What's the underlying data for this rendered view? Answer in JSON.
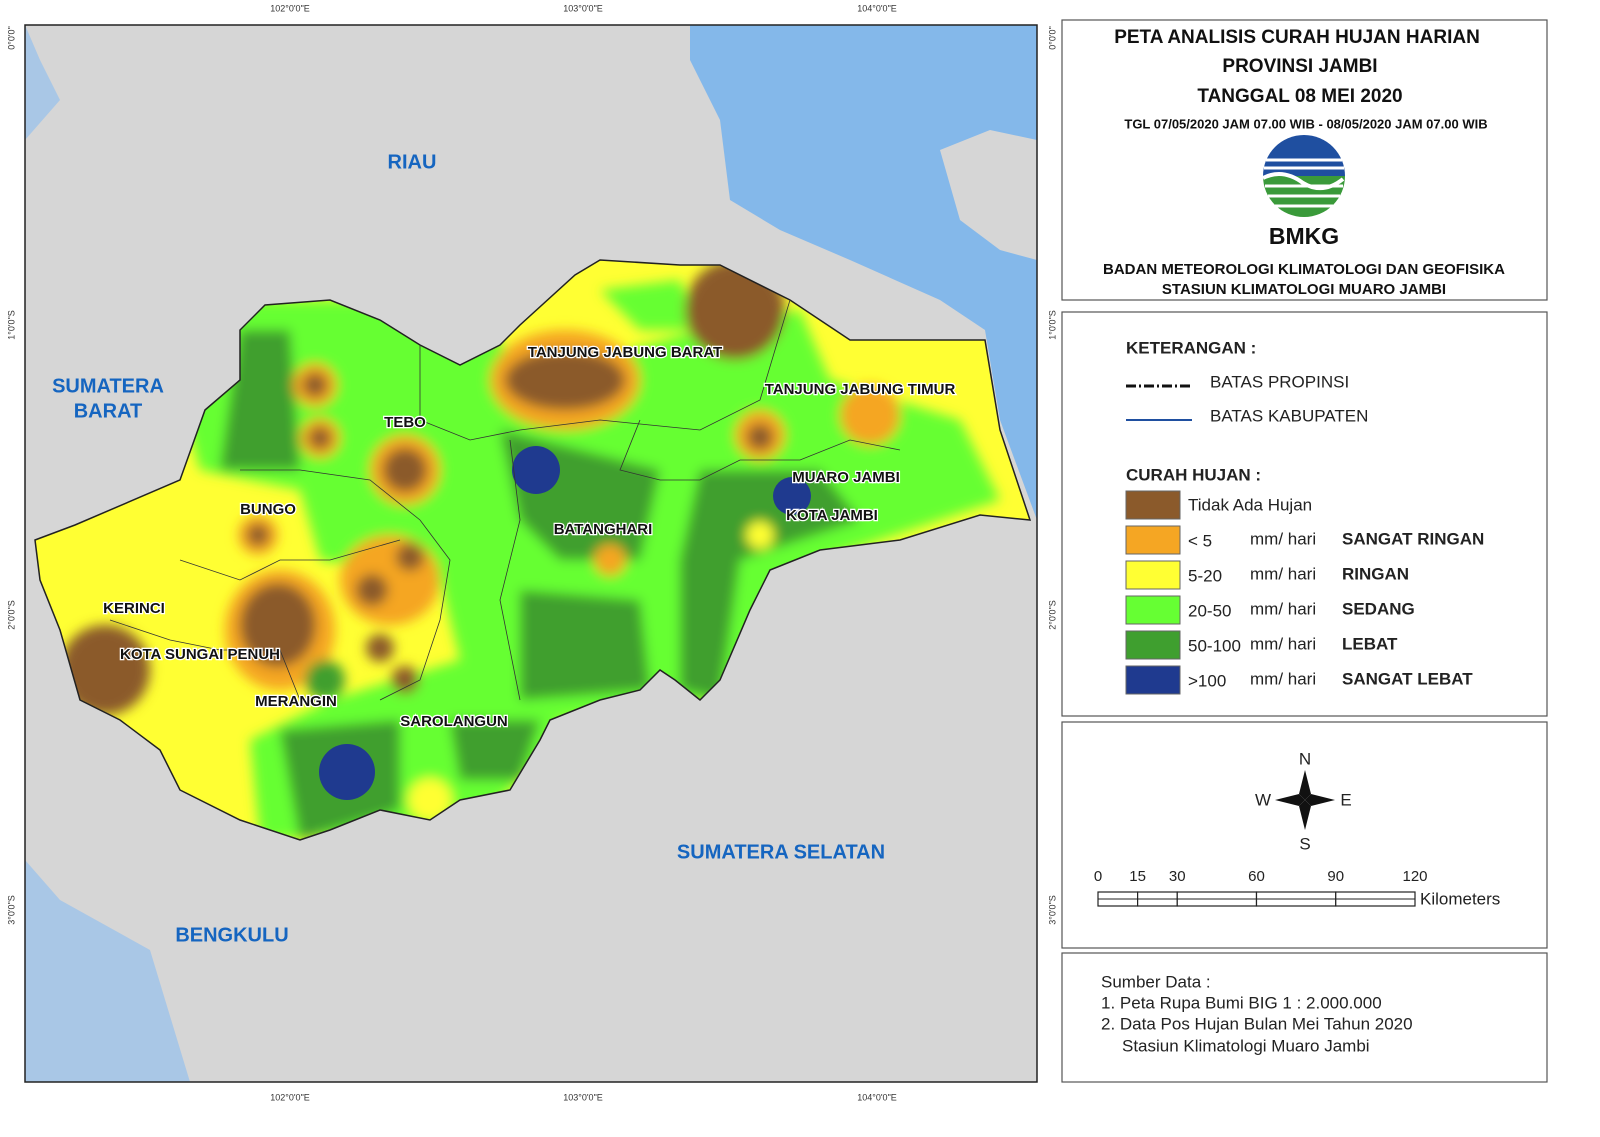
{
  "map": {
    "graticule": {
      "top": [
        "102°0'0\"E",
        "103°0'0\"E",
        "104°0'0\"E"
      ],
      "bottom": [
        "102°0'0\"E",
        "103°0'0\"E",
        "104°0'0\"E"
      ],
      "left": [
        "0°0'0\"",
        "1°0'0\"S",
        "2°0'0\"S",
        "3°0'0\"S"
      ],
      "right": [
        "0°0'0\"",
        "1°0'0\"S",
        "2°0'0\"S",
        "3°0'0\"S"
      ]
    },
    "regions": [
      "RIAU",
      "SUMATERA",
      "BARAT",
      "BENGKULU",
      "SUMATERA SELATAN"
    ],
    "districts": [
      "TANJUNG JABUNG BARAT",
      "TANJUNG JABUNG TIMUR",
      "TEBO",
      "BUNGO",
      "BATANGHARI",
      "MUARO JAMBI",
      "KOTA JAMBI",
      "KERINCI",
      "KOTA SUNGAI PENUH",
      "MERANGIN",
      "SAROLANGUN"
    ]
  },
  "header": {
    "title_lines": [
      "PETA ANALISIS CURAH HUJAN HARIAN",
      "PROVINSI JAMBI",
      "TANGGAL 08 MEI 2020"
    ],
    "period": "TGL 07/05/2020 JAM 07.00 WIB - 08/05/2020 JAM 07.00 WIB",
    "logo_text": "BMKG",
    "agency_lines": [
      "BADAN METEOROLOGI KLIMATOLOGI DAN GEOFISIKA",
      "STASIUN KLIMATOLOGI MUARO JAMBI"
    ]
  },
  "legend": {
    "heading": "KETERANGAN :",
    "boundaries": [
      "BATAS PROPINSI",
      "BATAS KABUPATEN"
    ],
    "rain_heading": "CURAH HUJAN :",
    "classes": [
      {
        "label": "Tidak Ada Hujan",
        "color": "#8b5a2b"
      },
      {
        "range": "< 5",
        "unit": "mm/ hari",
        "category": "SANGAT RINGAN",
        "color": "#f5a623"
      },
      {
        "range": "5-20",
        "unit": "mm/ hari",
        "category": "RINGAN",
        "color": "#ffff33"
      },
      {
        "range": "20-50",
        "unit": "mm/ hari",
        "category": "SEDANG",
        "color": "#66ff33"
      },
      {
        "range": "50-100",
        "unit": "mm/ hari",
        "category": "LEBAT",
        "color": "#3f9f2f"
      },
      {
        "range": ">100",
        "unit": "mm/ hari",
        "category": "SANGAT LEBAT",
        "color": "#1f3a8f"
      }
    ]
  },
  "compass": {
    "n": "N",
    "w": "W",
    "e": "E",
    "s": "S"
  },
  "scale": {
    "ticks": [
      0,
      15,
      30,
      60,
      90,
      120
    ],
    "unit": "Kilometers"
  },
  "sources": {
    "heading": "Sumber Data :",
    "items": [
      "1. Peta Rupa Bumi BIG 1 : 2.000.000",
      "2. Data Pos Hujan Bulan Mei Tahun 2020",
      "Stasiun Klimatologi Muaro Jambi"
    ]
  }
}
